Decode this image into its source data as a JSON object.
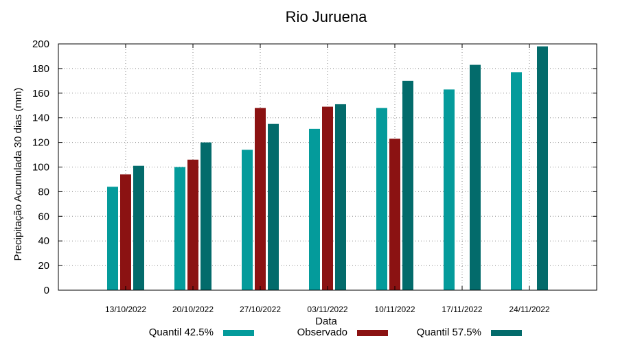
{
  "chart_data": {
    "type": "bar",
    "title": "Rio Juruena",
    "xlabel": "Data",
    "ylabel": "Precipitação Acumulada 30 dias (mm)",
    "ylim": [
      0,
      200
    ],
    "yticks": [
      0,
      20,
      40,
      60,
      80,
      100,
      120,
      140,
      160,
      180,
      200
    ],
    "grid": "horizontal dotted",
    "legend_position": "bottom",
    "categories": [
      "13/10/2022",
      "20/10/2022",
      "27/10/2022",
      "03/11/2022",
      "10/11/2022",
      "17/11/2022",
      "24/11/2022"
    ],
    "series": [
      {
        "name": "Quantil 42.5%",
        "color": "#049b9b",
        "values": [
          84,
          100,
          114,
          131,
          148,
          163,
          177
        ]
      },
      {
        "name": "Observado",
        "color": "#8b1212",
        "values": [
          94,
          106,
          148,
          149,
          123,
          null,
          null
        ]
      },
      {
        "name": "Quantil 57.5%",
        "color": "#036b6b",
        "values": [
          101,
          120,
          135,
          151,
          170,
          183,
          198
        ]
      }
    ]
  }
}
